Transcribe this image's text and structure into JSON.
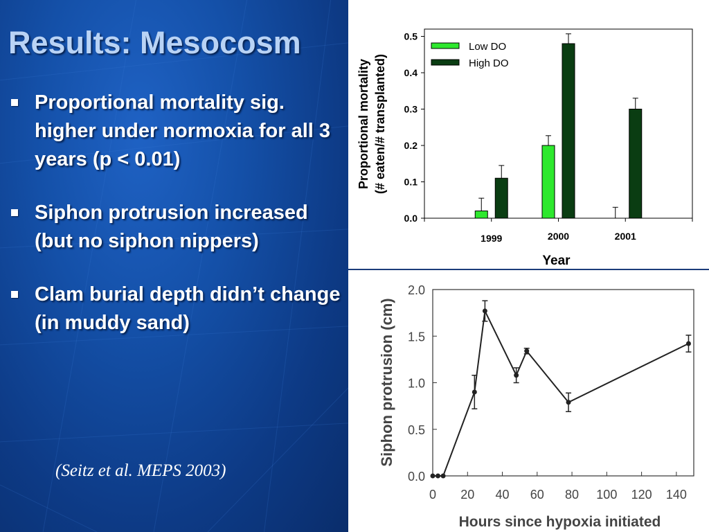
{
  "slide": {
    "title": "Results: Mesocosm",
    "bullets": [
      "Proportional mortality sig. higher under normoxia for all 3 years (p < 0.01)",
      "Siphon protrusion increased (but no siphon nippers)",
      "Clam burial depth didn’t change (in muddy sand)"
    ],
    "citation": "(Seitz et al. MEPS 2003)"
  },
  "colors": {
    "low_do": "#2ee82e",
    "high_do": "#0a3d12",
    "panel_blue": "#1450a8"
  },
  "chart_data": [
    {
      "type": "bar",
      "categories": [
        "1999",
        "2000",
        "2001"
      ],
      "series": [
        {
          "name": "Low DO",
          "values": [
            0.02,
            0.2,
            0.0
          ],
          "errors": [
            0.035,
            0.027,
            0.03
          ]
        },
        {
          "name": "High DO",
          "values": [
            0.11,
            0.48,
            0.3
          ],
          "errors": [
            0.035,
            0.027,
            0.03
          ]
        }
      ],
      "xlabel": "Year",
      "ylabel": "Proportional mortality",
      "ylabel2": "(# eaten/# transplanted)",
      "ylim": [
        0,
        0.52
      ],
      "yticks": [
        "0.0",
        "0.1",
        "0.2",
        "0.3",
        "0.4",
        "0.5"
      ],
      "legend": "top-left"
    },
    {
      "type": "line",
      "x": [
        0,
        3,
        6,
        24,
        30,
        48,
        54,
        78,
        147
      ],
      "y": [
        0.0,
        0.0,
        0.0,
        0.9,
        1.77,
        1.08,
        1.34,
        0.79,
        1.42
      ],
      "errors": [
        0,
        0,
        0,
        0.18,
        0.11,
        0.08,
        0.03,
        0.1,
        0.09
      ],
      "xlabel": "Hours since hypoxia initiated",
      "ylabel": "Siphon protrusion (cm)",
      "xlim": [
        0,
        150
      ],
      "ylim": [
        0,
        2.0
      ],
      "xticks": [
        "0",
        "20",
        "40",
        "60",
        "80",
        "100",
        "120",
        "140"
      ],
      "yticks": [
        "0.0",
        "0.5",
        "1.0",
        "1.5",
        "2.0"
      ]
    }
  ]
}
